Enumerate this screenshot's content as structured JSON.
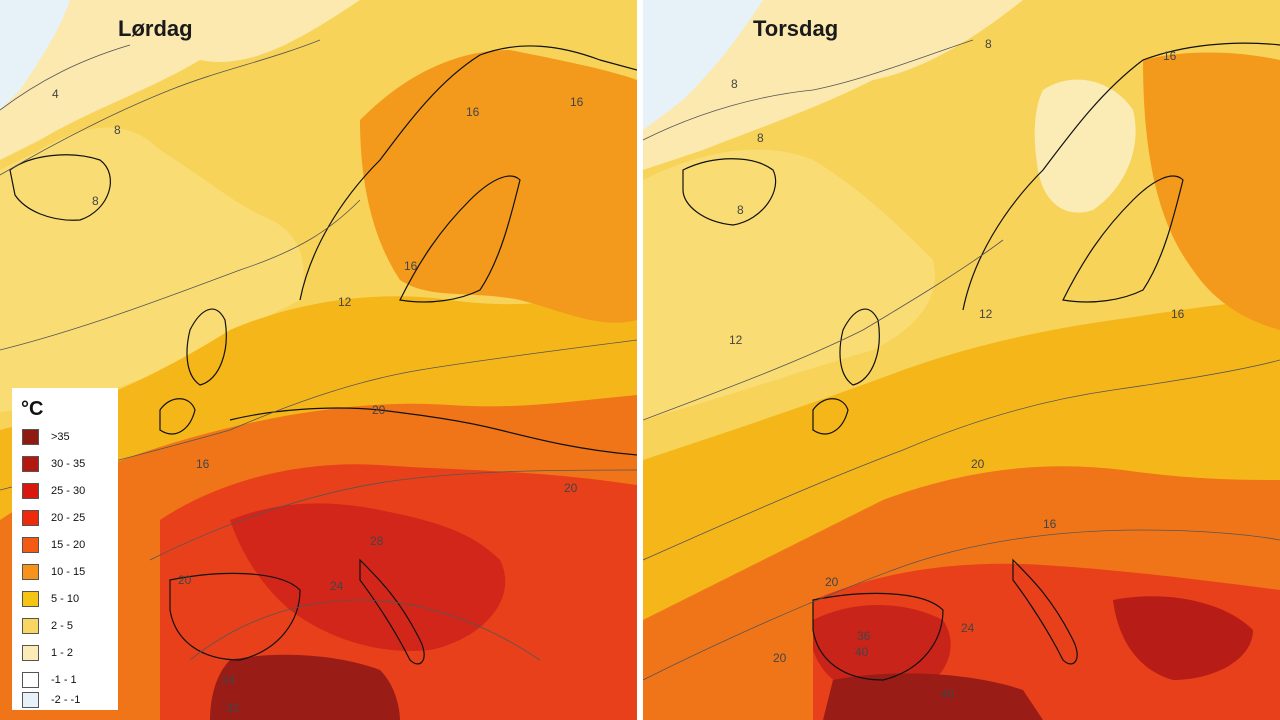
{
  "maps": [
    {
      "title": "Lørdag",
      "contour_labels": [
        "4",
        "8",
        "8",
        "12",
        "16",
        "16",
        "16",
        "16",
        "20",
        "20",
        "20",
        "24",
        "24",
        "28",
        "32"
      ]
    },
    {
      "title": "Torsdag",
      "contour_labels": [
        "8",
        "8",
        "8",
        "8",
        "12",
        "12",
        "16",
        "16",
        "16",
        "20",
        "20",
        "20",
        "24",
        "36",
        "40",
        "40"
      ]
    }
  ],
  "legend": {
    "unit": "°C",
    "items": [
      {
        "label": ">35",
        "color": "#8f1a12"
      },
      {
        "label": "30 - 35",
        "color": "#b4170f"
      },
      {
        "label": "25 - 30",
        "color": "#d8180e"
      },
      {
        "label": "20 - 25",
        "color": "#ee2a0c"
      },
      {
        "label": "15 - 20",
        "color": "#f45a12"
      },
      {
        "label": "10 - 15",
        "color": "#f7921a"
      },
      {
        "label": "5 - 10",
        "color": "#f6c413"
      },
      {
        "label": "2 - 5",
        "color": "#f8d761"
      },
      {
        "label": "1 - 2",
        "color": "#fbecb6"
      },
      {
        "label": "-1 - 1",
        "color": "#ffffff"
      },
      {
        "label": "-2 - -1",
        "color": "#e7f2f8"
      }
    ]
  },
  "colors": {
    "ocean_cold": "#fbe9b0",
    "ocean_cool": "#f8d35a",
    "land_cool": "#f4b21c",
    "land_warm": "#f28a1c",
    "land_hot": "#e8401a",
    "land_very_hot": "#c9241a",
    "extreme": "#9a1c16",
    "coast": "#111111",
    "contour": "#555555"
  }
}
